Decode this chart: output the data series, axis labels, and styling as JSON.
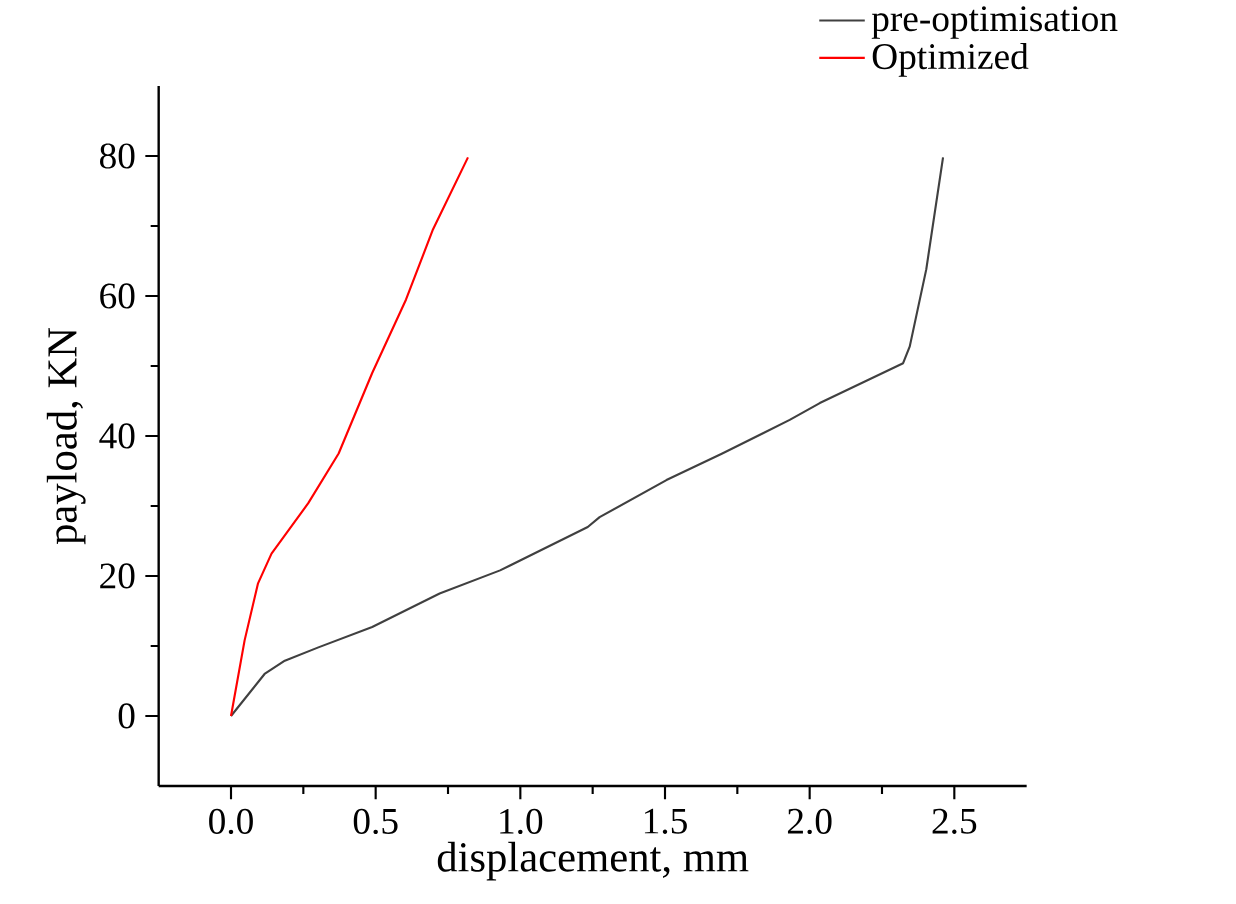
{
  "chart_data": {
    "type": "line",
    "xlabel": "displacement, mm",
    "ylabel": "payload, KN",
    "xlim": [
      -0.25,
      2.75
    ],
    "xticks": [
      {
        "value": 0,
        "label": "0.0"
      },
      {
        "value": 0.5,
        "label": "0.5"
      },
      {
        "value": 1,
        "label": "1.0"
      },
      {
        "value": 1.5,
        "label": "1.5"
      },
      {
        "value": 2,
        "label": "2.0"
      },
      {
        "value": 2.5,
        "label": "2.5"
      }
    ],
    "ylim": [
      -10,
      90
    ],
    "yticks": [
      0,
      20,
      40,
      60,
      80
    ],
    "grid": false,
    "legend": "top right",
    "line_style": "solid",
    "marker": "none",
    "series": [
      {
        "name": "pre-optimisation",
        "color": "#404040",
        "x": [
          0,
          0.116,
          0.186,
          0.302,
          0.488,
          0.721,
          0.93,
          1.233,
          1.274,
          1.505,
          1.698,
          1.931,
          2.035,
          2.323,
          2.346,
          2.403,
          2.461
        ],
        "values": [
          0,
          6,
          7.9,
          9.8,
          12.7,
          17.5,
          20.8,
          27,
          28.4,
          33.7,
          37.5,
          42.3,
          44.7,
          50.4,
          52.8,
          63.8,
          79.8
        ]
      },
      {
        "name": "Optimized",
        "color": "#ff0000",
        "x": [
          0,
          0.047,
          0.093,
          0.14,
          0.267,
          0.372,
          0.488,
          0.605,
          0.698,
          0.819
        ],
        "values": [
          0,
          10.8,
          18.9,
          23.2,
          30.4,
          37.5,
          49,
          59.5,
          69.5,
          79.8
        ]
      }
    ]
  }
}
